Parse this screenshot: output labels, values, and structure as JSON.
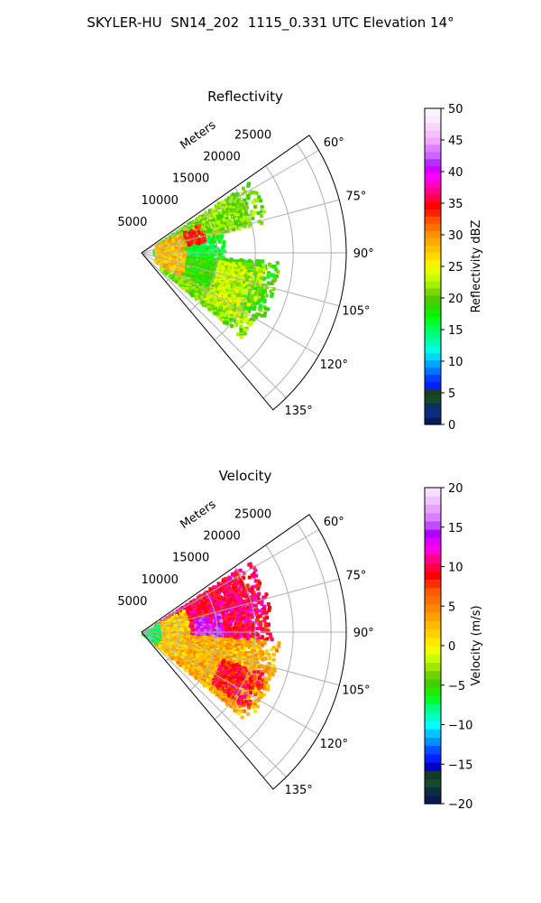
{
  "figure_title": "SKYLER-HU  SN14_202  1115_0.331 UTC Elevation 14°",
  "colors": {
    "grid": "#b0b0b0",
    "frame": "#000000"
  },
  "chart_data": [
    {
      "type": "heatmap",
      "title": "Reflectivity",
      "projection": "polar sector",
      "r_axis_label": "Meters",
      "r_ticks": [
        5000,
        10000,
        15000,
        20000,
        25000
      ],
      "r_tick_labels": [
        "5000",
        "10000",
        "15000",
        "20000",
        "25000"
      ],
      "r_lim": [
        0,
        27000
      ],
      "theta_lim_deg": [
        55,
        140
      ],
      "theta_ticks_deg": [
        60,
        75,
        90,
        105,
        120,
        135
      ],
      "theta_tick_labels": [
        "60°",
        "75°",
        "90°",
        "105°",
        "120°",
        "135°"
      ],
      "grid": true,
      "colorbar": {
        "label": "Reflectivity dBZ",
        "range": [
          0,
          50
        ],
        "ticks": [
          0,
          5,
          10,
          15,
          20,
          25,
          30,
          35,
          40,
          45,
          50
        ],
        "tick_labels": [
          "0",
          "5",
          "10",
          "15",
          "20",
          "25",
          "30",
          "35",
          "40",
          "45",
          "50"
        ]
      },
      "echo_regions": [
        {
          "theta": [
            56,
            75
          ],
          "r": [
            2000,
            17000
          ],
          "value": 21
        },
        {
          "theta": [
            75,
            93
          ],
          "r": [
            1500,
            10500
          ],
          "value": 16
        },
        {
          "theta": [
            93,
            118
          ],
          "r": [
            2000,
            18000
          ],
          "value": 19
        },
        {
          "theta": [
            118,
            130
          ],
          "r": [
            3000,
            17000
          ],
          "value": 21
        },
        {
          "theta": [
            60,
            120
          ],
          "r": [
            1800,
            5500
          ],
          "value": 28
        },
        {
          "theta": [
            62,
            78
          ],
          "r": [
            6000,
            8500
          ],
          "value": 34
        },
        {
          "theta": [
            95,
            125
          ],
          "r": [
            10000,
            16000
          ],
          "value": 23
        }
      ]
    },
    {
      "type": "heatmap",
      "title": "Velocity",
      "projection": "polar sector",
      "r_axis_label": "Meters",
      "r_ticks": [
        5000,
        10000,
        15000,
        20000,
        25000
      ],
      "r_tick_labels": [
        "5000",
        "10000",
        "15000",
        "20000",
        "25000"
      ],
      "r_lim": [
        0,
        27000
      ],
      "theta_lim_deg": [
        55,
        140
      ],
      "theta_ticks_deg": [
        60,
        75,
        90,
        105,
        120,
        135
      ],
      "theta_tick_labels": [
        "60°",
        "75°",
        "90°",
        "105°",
        "120°",
        "135°"
      ],
      "grid": true,
      "colorbar": {
        "label": "Velocity (m/s)",
        "range": [
          -20,
          20
        ],
        "ticks": [
          -20,
          -15,
          -10,
          -5,
          0,
          5,
          10,
          15,
          20
        ],
        "tick_labels": [
          "−20",
          "−15",
          "−10",
          "−5",
          "0",
          "5",
          "10",
          "15",
          "20"
        ]
      },
      "echo_regions": [
        {
          "theta": [
            56,
            93
          ],
          "r": [
            2000,
            17000
          ],
          "value": 10
        },
        {
          "theta": [
            75,
            92
          ],
          "r": [
            7000,
            10500
          ],
          "value": 14
        },
        {
          "theta": [
            93,
            130
          ],
          "r": [
            2000,
            18000
          ],
          "value": 3
        },
        {
          "theta": [
            108,
            126
          ],
          "r": [
            11000,
            17000
          ],
          "value": 9
        },
        {
          "theta": [
            60,
            125
          ],
          "r": [
            2000,
            6000
          ],
          "value": 2
        },
        {
          "theta": [
            60,
            125
          ],
          "r": [
            0,
            2000
          ],
          "value": -7
        }
      ]
    }
  ]
}
